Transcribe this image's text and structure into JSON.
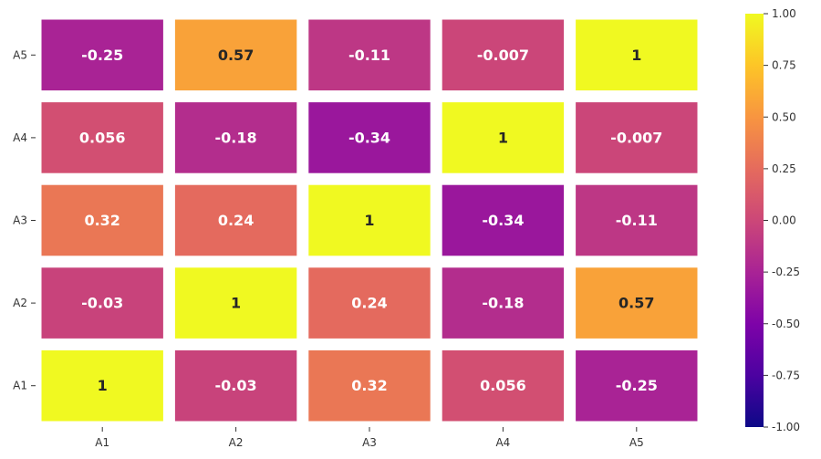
{
  "chart_data": {
    "type": "heatmap",
    "x_categories": [
      "A1",
      "A2",
      "A3",
      "A4",
      "A5"
    ],
    "y_categories": [
      "A5",
      "A4",
      "A3",
      "A2",
      "A1"
    ],
    "values": [
      [
        -0.25,
        0.57,
        -0.11,
        -0.007,
        1
      ],
      [
        0.056,
        -0.18,
        -0.34,
        1,
        -0.007
      ],
      [
        0.32,
        0.24,
        1,
        -0.34,
        -0.11
      ],
      [
        -0.03,
        1,
        0.24,
        -0.18,
        0.57
      ],
      [
        1,
        -0.03,
        0.32,
        0.056,
        -0.25
      ]
    ],
    "cell_labels": [
      [
        "-0.25",
        "0.57",
        "-0.11",
        "-0.007",
        "1"
      ],
      [
        "0.056",
        "-0.18",
        "-0.34",
        "1",
        "-0.007"
      ],
      [
        "0.32",
        "0.24",
        "1",
        "-0.34",
        "-0.11"
      ],
      [
        "-0.03",
        "1",
        "0.24",
        "-0.18",
        "0.57"
      ],
      [
        "1",
        "-0.03",
        "0.32",
        "0.056",
        "-0.25"
      ]
    ],
    "colormap": "plasma",
    "vmin": -1.0,
    "vmax": 1.0,
    "colorbar_ticks": [
      "1.00",
      "0.75",
      "0.50",
      "0.25",
      "0.00",
      "-0.25",
      "-0.50",
      "-0.75",
      "-1.00"
    ],
    "colorbar_tick_values": [
      1.0,
      0.75,
      0.5,
      0.25,
      0.0,
      -0.25,
      -0.5,
      -0.75,
      -1.0
    ],
    "cell_gap_color": "#ffffff",
    "dark_text_color": "#262626",
    "light_text_color": "#ffffff"
  }
}
